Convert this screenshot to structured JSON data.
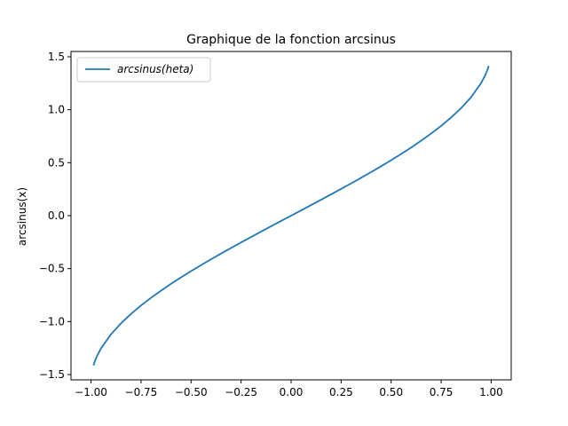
{
  "chart_data": {
    "type": "line",
    "title": "Graphique de la fonction arcsinus",
    "xlabel": "",
    "ylabel": "arcsinus(x)",
    "xlim": [
      -1.1,
      1.1
    ],
    "ylim": [
      -1.55,
      1.55
    ],
    "x_ticks": [
      -1.0,
      -0.75,
      -0.5,
      -0.25,
      0.0,
      0.25,
      0.5,
      0.75,
      1.0
    ],
    "x_tick_labels": [
      "−1.00",
      "−0.75",
      "−0.50",
      "−0.25",
      "0.00",
      "0.25",
      "0.50",
      "0.75",
      "1.00"
    ],
    "y_ticks": [
      -1.5,
      -1.0,
      -0.5,
      0.0,
      0.5,
      1.0,
      1.5
    ],
    "y_tick_labels": [
      "−1.5",
      "−1.0",
      "−0.5",
      "0.0",
      "0.5",
      "1.0",
      "1.5"
    ],
    "grid": false,
    "legend_position": "top-left",
    "series": [
      {
        "name": "arcsinus(heta)",
        "color": "#1f77b4",
        "x": [
          -0.9878,
          -0.98,
          -0.97,
          -0.95,
          -0.9,
          -0.85,
          -0.8,
          -0.75,
          -0.7,
          -0.65,
          -0.6,
          -0.55,
          -0.5,
          -0.45,
          -0.4,
          -0.35,
          -0.3,
          -0.25,
          -0.2,
          -0.15,
          -0.1,
          -0.05,
          0.0,
          0.05,
          0.1,
          0.15,
          0.2,
          0.25,
          0.3,
          0.35,
          0.4,
          0.45,
          0.5,
          0.55,
          0.6,
          0.65,
          0.7,
          0.75,
          0.8,
          0.85,
          0.9,
          0.95,
          0.97,
          0.98,
          0.9878
        ],
        "y": [
          -1.4137,
          -1.3705,
          -1.3252,
          -1.2532,
          -1.1198,
          -1.016,
          -0.9273,
          -0.8481,
          -0.7754,
          -0.7076,
          -0.6435,
          -0.5824,
          -0.5236,
          -0.4668,
          -0.4115,
          -0.3576,
          -0.3047,
          -0.2527,
          -0.2014,
          -0.1506,
          -0.1002,
          -0.05,
          0.0,
          0.05,
          0.1002,
          0.1506,
          0.2014,
          0.2527,
          0.3047,
          0.3576,
          0.4115,
          0.4668,
          0.5236,
          0.5824,
          0.6435,
          0.7076,
          0.7754,
          0.8481,
          0.9273,
          1.016,
          1.1198,
          1.2532,
          1.3252,
          1.3705,
          1.4137
        ]
      }
    ]
  }
}
